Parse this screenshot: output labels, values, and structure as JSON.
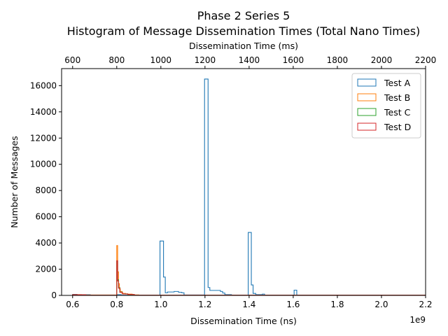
{
  "chart_data": {
    "type": "histogram",
    "title": "Phase 2 Series 5",
    "subtitle": "Histogram of Message Dissemination Times (Total Nano Times)",
    "xlabel": "Dissemination Time (ns)",
    "ylabel": "Number of Messages",
    "top_xlabel": "Dissemination Time (ms)",
    "x_multiplier": "1e9",
    "xlim": [
      0.55,
      2.2
    ],
    "ylim": [
      0,
      17300
    ],
    "xticks": [
      "0.6",
      "0.8",
      "1.0",
      "1.2",
      "1.4",
      "1.6",
      "1.8",
      "2.0",
      "2.2"
    ],
    "xtick_values": [
      0.6,
      0.8,
      1.0,
      1.2,
      1.4,
      1.6,
      1.8,
      2.0,
      2.2
    ],
    "top_xticks": [
      "600",
      "800",
      "1000",
      "1200",
      "1400",
      "1600",
      "1800",
      "2000",
      "2200"
    ],
    "yticks": [
      "0",
      "2000",
      "4000",
      "6000",
      "8000",
      "10000",
      "12000",
      "14000",
      "16000"
    ],
    "ytick_values": [
      0,
      2000,
      4000,
      6000,
      8000,
      10000,
      12000,
      14000,
      16000
    ],
    "grid": false,
    "legend_position": "top-right",
    "series": [
      {
        "name": "Test A",
        "color": "#1f77b4",
        "points": [
          [
            0.6,
            0
          ],
          [
            0.6,
            80
          ],
          [
            0.62,
            80
          ],
          [
            0.62,
            30
          ],
          [
            0.66,
            30
          ],
          [
            0.66,
            50
          ],
          [
            0.68,
            50
          ],
          [
            0.68,
            20
          ],
          [
            0.8,
            20
          ],
          [
            0.8,
            60
          ],
          [
            0.82,
            60
          ],
          [
            0.82,
            20
          ],
          [
            0.996,
            20
          ],
          [
            0.996,
            4150
          ],
          [
            1.012,
            4150
          ],
          [
            1.012,
            1400
          ],
          [
            1.02,
            1400
          ],
          [
            1.02,
            200
          ],
          [
            1.03,
            200
          ],
          [
            1.03,
            260
          ],
          [
            1.06,
            260
          ],
          [
            1.06,
            300
          ],
          [
            1.08,
            300
          ],
          [
            1.08,
            240
          ],
          [
            1.095,
            240
          ],
          [
            1.095,
            200
          ],
          [
            1.105,
            200
          ],
          [
            1.105,
            30
          ],
          [
            1.198,
            30
          ],
          [
            1.198,
            16500
          ],
          [
            1.214,
            16500
          ],
          [
            1.214,
            600
          ],
          [
            1.222,
            600
          ],
          [
            1.222,
            380
          ],
          [
            1.27,
            380
          ],
          [
            1.27,
            300
          ],
          [
            1.28,
            300
          ],
          [
            1.28,
            180
          ],
          [
            1.29,
            180
          ],
          [
            1.29,
            60
          ],
          [
            1.32,
            60
          ],
          [
            1.32,
            20
          ],
          [
            1.396,
            20
          ],
          [
            1.396,
            4800
          ],
          [
            1.41,
            4800
          ],
          [
            1.41,
            800
          ],
          [
            1.418,
            800
          ],
          [
            1.418,
            150
          ],
          [
            1.43,
            150
          ],
          [
            1.43,
            60
          ],
          [
            1.46,
            60
          ],
          [
            1.46,
            100
          ],
          [
            1.47,
            100
          ],
          [
            1.47,
            20
          ],
          [
            1.604,
            20
          ],
          [
            1.604,
            400
          ],
          [
            1.616,
            400
          ],
          [
            1.616,
            20
          ],
          [
            2.2,
            20
          ]
        ]
      },
      {
        "name": "Test B",
        "color": "#ff7f0e",
        "points": [
          [
            0.6,
            0
          ],
          [
            0.6,
            60
          ],
          [
            0.64,
            60
          ],
          [
            0.64,
            30
          ],
          [
            0.8,
            30
          ],
          [
            0.8,
            3800
          ],
          [
            0.804,
            3800
          ],
          [
            0.804,
            1800
          ],
          [
            0.808,
            1800
          ],
          [
            0.808,
            900
          ],
          [
            0.812,
            900
          ],
          [
            0.812,
            500
          ],
          [
            0.816,
            500
          ],
          [
            0.816,
            300
          ],
          [
            0.824,
            300
          ],
          [
            0.824,
            150
          ],
          [
            0.84,
            150
          ],
          [
            0.84,
            100
          ],
          [
            0.87,
            100
          ],
          [
            0.87,
            40
          ],
          [
            0.9,
            40
          ],
          [
            0.9,
            10
          ],
          [
            2.2,
            10
          ]
        ]
      },
      {
        "name": "Test C",
        "color": "#2ca02c",
        "points": [
          [
            0.6,
            0
          ],
          [
            0.6,
            40
          ],
          [
            0.66,
            40
          ],
          [
            0.66,
            20
          ],
          [
            0.8,
            20
          ],
          [
            0.8,
            2600
          ],
          [
            0.804,
            2600
          ],
          [
            0.804,
            1200
          ],
          [
            0.808,
            1200
          ],
          [
            0.808,
            600
          ],
          [
            0.814,
            600
          ],
          [
            0.814,
            250
          ],
          [
            0.826,
            250
          ],
          [
            0.826,
            120
          ],
          [
            0.85,
            120
          ],
          [
            0.85,
            60
          ],
          [
            0.88,
            60
          ],
          [
            0.88,
            10
          ],
          [
            2.2,
            10
          ]
        ]
      },
      {
        "name": "Test D",
        "color": "#d62728",
        "points": [
          [
            0.6,
            0
          ],
          [
            0.6,
            50
          ],
          [
            0.66,
            50
          ],
          [
            0.66,
            20
          ],
          [
            0.8,
            20
          ],
          [
            0.8,
            2650
          ],
          [
            0.804,
            2650
          ],
          [
            0.804,
            1100
          ],
          [
            0.808,
            1100
          ],
          [
            0.808,
            550
          ],
          [
            0.814,
            550
          ],
          [
            0.814,
            230
          ],
          [
            0.826,
            230
          ],
          [
            0.826,
            110
          ],
          [
            0.85,
            110
          ],
          [
            0.85,
            70
          ],
          [
            0.88,
            70
          ],
          [
            0.88,
            15
          ],
          [
            2.2,
            15
          ]
        ]
      }
    ]
  }
}
